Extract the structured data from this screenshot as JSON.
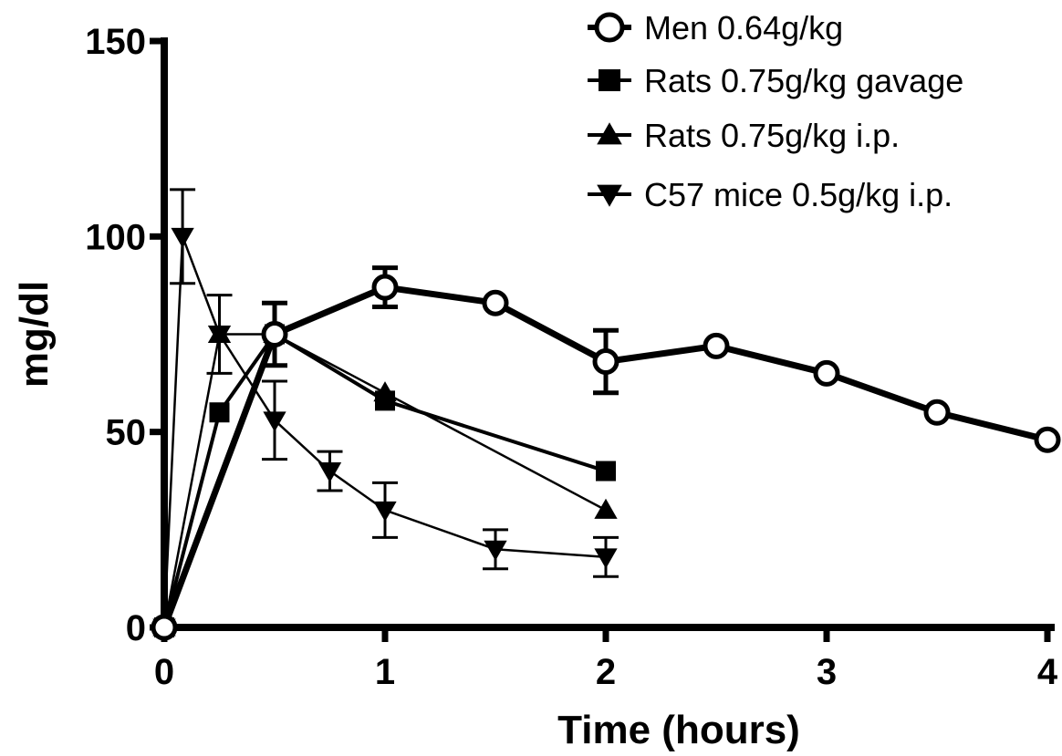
{
  "chart_data": {
    "type": "line",
    "xlabel": "Time (hours)",
    "ylabel": "mg/dl",
    "xlim": [
      0,
      4
    ],
    "ylim": [
      0,
      150
    ],
    "xticks": [
      "0",
      "1",
      "2",
      "3",
      "4"
    ],
    "yticks": [
      "0",
      "50",
      "100",
      "150"
    ],
    "grid": false,
    "legend_position": "top-right",
    "series": [
      {
        "name": "Men 0.64g/kg",
        "marker": "open-circle",
        "line": "thick",
        "color": "#000000",
        "x": [
          0,
          0.5,
          1,
          1.5,
          2,
          2.5,
          3,
          3.5,
          4
        ],
        "y": [
          0,
          75,
          87,
          83,
          68,
          72,
          65,
          55,
          48
        ],
        "err": [
          0,
          8,
          5,
          0,
          8,
          0,
          0,
          0,
          0
        ]
      },
      {
        "name": "Rats 0.75g/kg gavage",
        "marker": "square",
        "line": "medium",
        "color": "#000000",
        "x": [
          0,
          0.25,
          0.5,
          1,
          2
        ],
        "y": [
          0,
          55,
          75,
          58,
          40
        ],
        "err": [
          0,
          0,
          0,
          0,
          0
        ]
      },
      {
        "name": "Rats 0.75g/kg i.p.",
        "marker": "triangle-up",
        "line": "thin",
        "color": "#000000",
        "x": [
          0,
          0.25,
          0.5,
          1,
          2
        ],
        "y": [
          0,
          75,
          75,
          60,
          30
        ],
        "err": [
          0,
          0,
          0,
          0,
          0
        ]
      },
      {
        "name": "C57 mice 0.5g/kg i.p.",
        "marker": "triangle-down",
        "line": "thin",
        "color": "#000000",
        "x": [
          0,
          0.083,
          0.25,
          0.5,
          0.75,
          1,
          1.5,
          2
        ],
        "y": [
          0,
          100,
          75,
          53,
          40,
          30,
          20,
          18
        ],
        "err": [
          0,
          12,
          10,
          10,
          5,
          7,
          5,
          5
        ]
      }
    ]
  }
}
